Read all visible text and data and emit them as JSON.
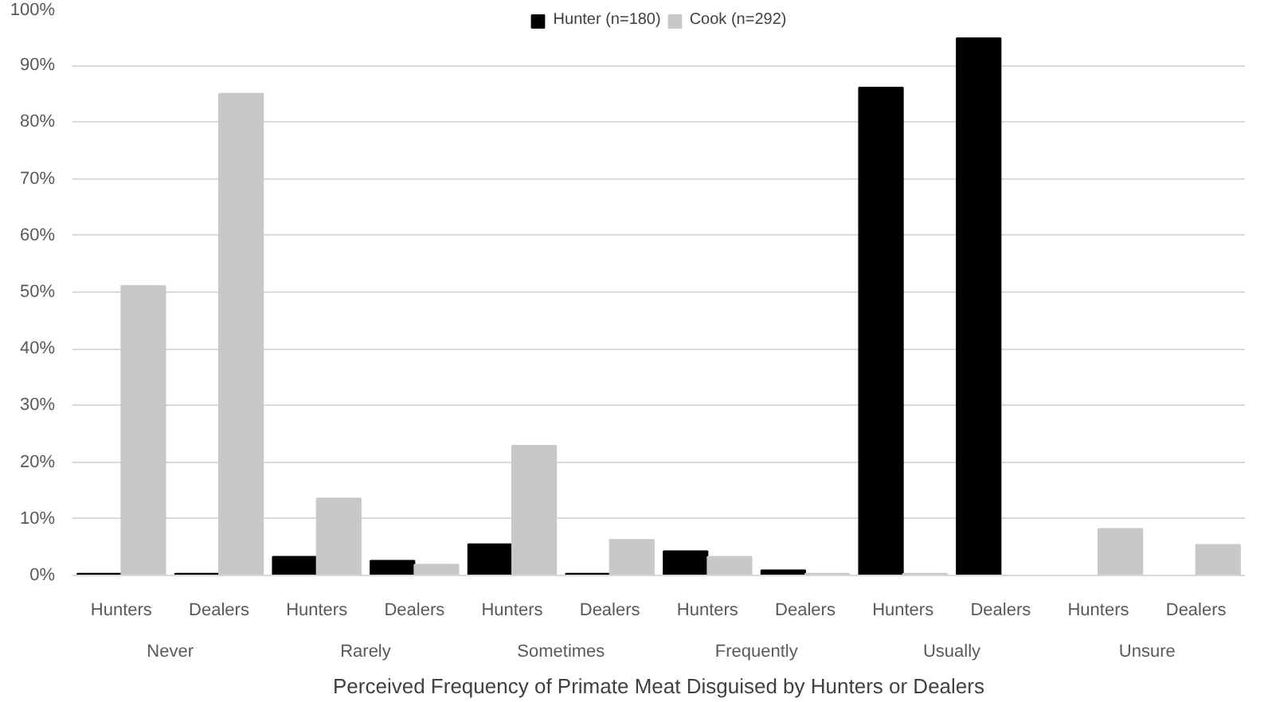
{
  "chart_data": {
    "type": "bar",
    "xlabel": "Perceived Frequency of Primate Meat Disguised by Hunters or Dealers",
    "categories": [
      "Hunters",
      "Dealers",
      "Hunters",
      "Dealers",
      "Hunters",
      "Dealers",
      "Hunters",
      "Dealers",
      "Hunters",
      "Dealers",
      "Hunters",
      "Dealers"
    ],
    "annotations": [
      "Never",
      "Rarely",
      "Sometimes",
      "Frequently",
      "Usually",
      "Unsure"
    ],
    "series": [
      {
        "name": "Hunter (n=180)",
        "color": "#000000",
        "values": [
          0.3,
          0.3,
          3.3,
          2.6,
          5.5,
          0.3,
          4.3,
          0.9,
          86.1,
          94.8,
          0,
          0
        ]
      },
      {
        "name": "Cook (n=292)",
        "color": "#c8c8c8",
        "values": [
          51.1,
          85.0,
          13.6,
          1.9,
          22.9,
          6.3,
          3.3,
          0.3,
          0.3,
          0,
          8.2,
          5.4
        ]
      }
    ],
    "ylim": [
      0,
      100
    ],
    "yticks": [
      {
        "value": 0,
        "label": "0%"
      },
      {
        "value": 10,
        "label": "10%"
      },
      {
        "value": 20,
        "label": "20%"
      },
      {
        "value": 30,
        "label": "30%"
      },
      {
        "value": 40,
        "label": "40%"
      },
      {
        "value": 50,
        "label": "50%"
      },
      {
        "value": 60,
        "label": "60%"
      },
      {
        "value": 70,
        "label": "70%"
      },
      {
        "value": 80,
        "label": "80%"
      },
      {
        "value": 90,
        "label": "90%"
      },
      {
        "value": 100,
        "label": "100%"
      }
    ],
    "grid": "y",
    "legend": "top"
  }
}
